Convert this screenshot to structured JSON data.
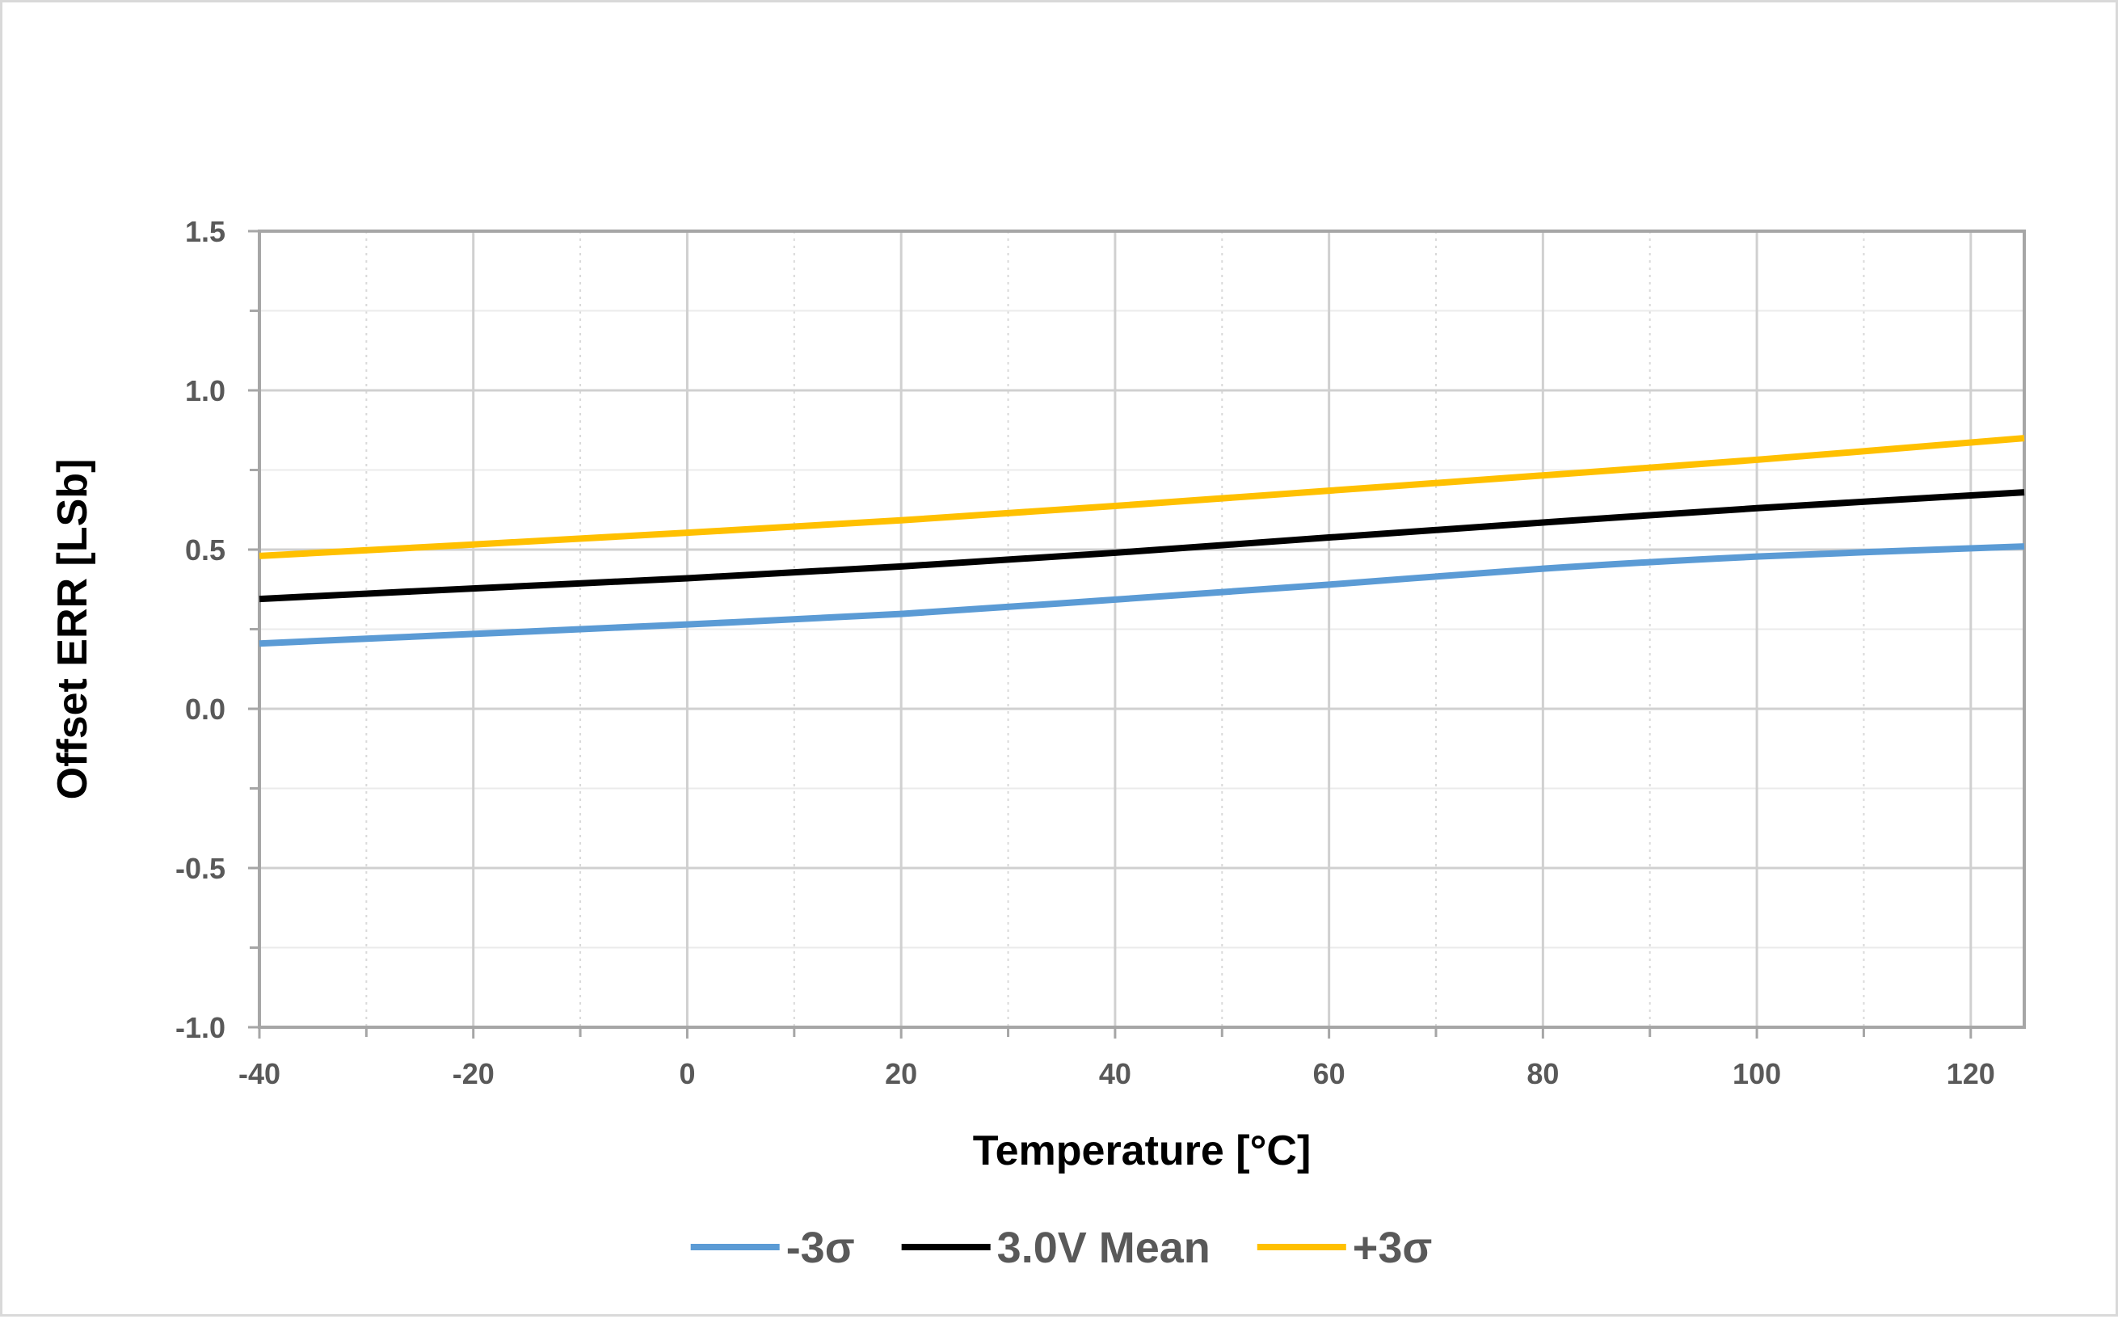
{
  "chart_data": {
    "type": "line",
    "title": "",
    "xlabel": "Temperature [°C]",
    "ylabel": "Offset ERR [LSb]",
    "xlim": [
      -40,
      125
    ],
    "ylim": [
      -1.0,
      1.5
    ],
    "x_major_ticks": [
      -40,
      -20,
      0,
      20,
      40,
      60,
      80,
      100,
      120
    ],
    "x_tick_labels": [
      "-40",
      "-20",
      "0",
      "20",
      "40",
      "60",
      "80",
      "100",
      "120"
    ],
    "x_minor_step": 10,
    "y_major_ticks": [
      -1.0,
      -0.5,
      0.0,
      0.5,
      1.0,
      1.5
    ],
    "y_tick_labels": [
      "-1.0",
      "-0.5",
      "0.0",
      "0.5",
      "1.0",
      "1.5"
    ],
    "y_minor_step": 0.25,
    "grid": true,
    "legend_position": "bottom",
    "x": [
      -40,
      -20,
      0,
      20,
      40,
      60,
      80,
      100,
      125
    ],
    "series": [
      {
        "name": "-3σ",
        "color": "#5b9bd5",
        "values": [
          0.205,
          0.235,
          0.265,
          0.298,
          0.343,
          0.39,
          0.44,
          0.478,
          0.51
        ]
      },
      {
        "name": "3.0V Mean",
        "color": "#000000",
        "values": [
          0.345,
          0.378,
          0.41,
          0.447,
          0.49,
          0.538,
          0.585,
          0.63,
          0.68
        ]
      },
      {
        "name": "+3σ",
        "color": "#ffc000",
        "values": [
          0.48,
          0.516,
          0.553,
          0.592,
          0.637,
          0.685,
          0.733,
          0.782,
          0.85
        ]
      }
    ]
  }
}
